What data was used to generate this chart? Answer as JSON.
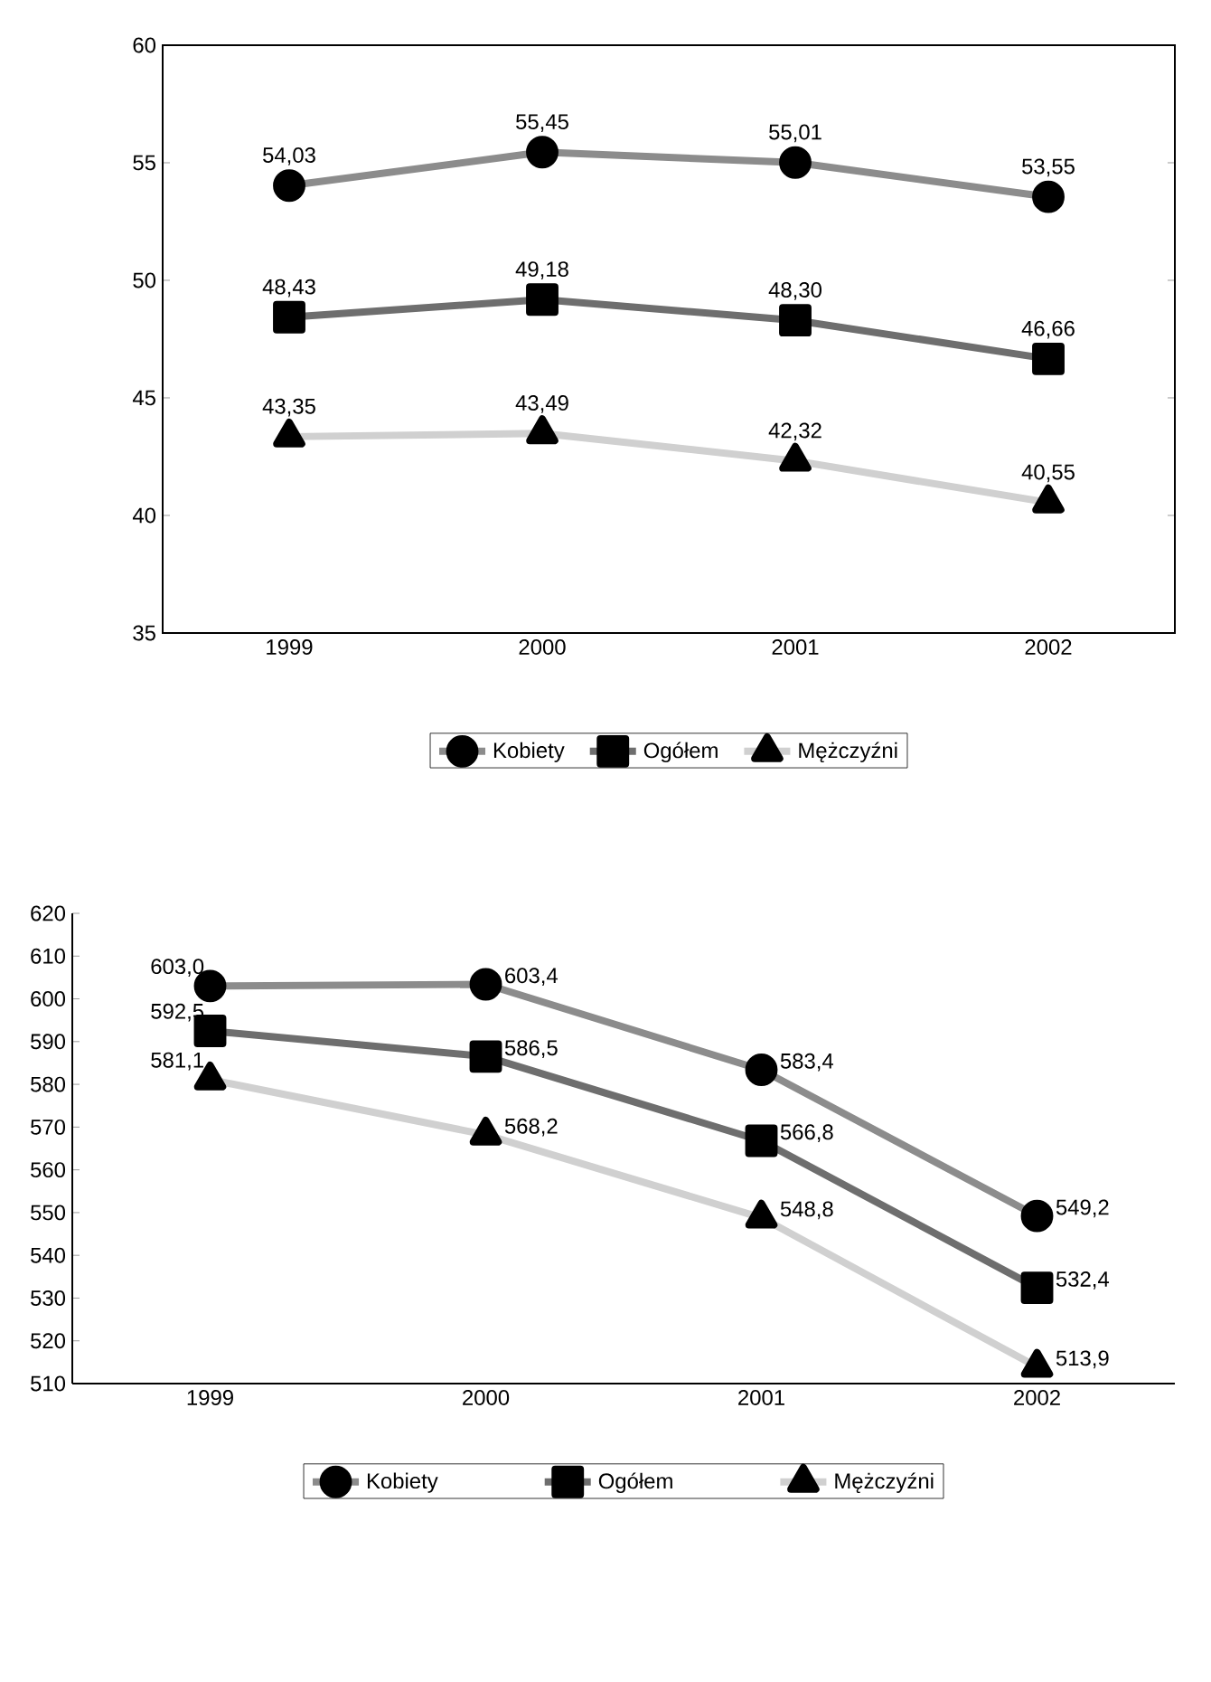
{
  "chart_data": [
    {
      "type": "line",
      "categories": [
        "1999",
        "2000",
        "2001",
        "2002"
      ],
      "ylim": [
        35,
        60
      ],
      "yticks": [
        35,
        40,
        45,
        50,
        55,
        60
      ],
      "legend": "bottom",
      "grid": false,
      "series": [
        {
          "name": "Kobiety",
          "color": "#8c8c8c",
          "marker": "circle",
          "values": [
            54.03,
            55.45,
            55.01,
            53.55
          ],
          "value_labels": [
            "54,03",
            "55,45",
            "55,01",
            "53,55"
          ]
        },
        {
          "name": "Ogółem",
          "color": "#6e6e6e",
          "marker": "square",
          "values": [
            48.43,
            49.18,
            48.3,
            46.66
          ],
          "value_labels": [
            "48,43",
            "49,18",
            "48,30",
            "46,66"
          ]
        },
        {
          "name": "Mężczyźni",
          "color": "#d0d0d0",
          "marker": "triangle",
          "values": [
            43.35,
            43.49,
            42.32,
            40.55
          ],
          "value_labels": [
            "43,35",
            "43,49",
            "42,32",
            "40,55"
          ]
        }
      ]
    },
    {
      "type": "line",
      "categories": [
        "1999",
        "2000",
        "2001",
        "2002"
      ],
      "ylim": [
        510,
        620
      ],
      "yticks": [
        510,
        520,
        530,
        540,
        550,
        560,
        570,
        580,
        590,
        600,
        610,
        620
      ],
      "legend": "bottom",
      "grid": false,
      "series": [
        {
          "name": "Kobiety",
          "color": "#8c8c8c",
          "marker": "circle",
          "values": [
            603.0,
            603.4,
            583.4,
            549.2
          ],
          "value_labels": [
            "603,0",
            "603,4",
            "583,4",
            "549,2"
          ]
        },
        {
          "name": "Ogółem",
          "color": "#6e6e6e",
          "marker": "square",
          "values": [
            592.5,
            586.5,
            566.8,
            532.4
          ],
          "value_labels": [
            "592,5",
            "586,5",
            "566,8",
            "532,4"
          ]
        },
        {
          "name": "Mężczyźni",
          "color": "#d0d0d0",
          "marker": "triangle",
          "values": [
            581.1,
            568.2,
            548.8,
            513.9
          ],
          "value_labels": [
            "581,1",
            "568,2",
            "548,8",
            "513,9"
          ]
        }
      ]
    }
  ]
}
